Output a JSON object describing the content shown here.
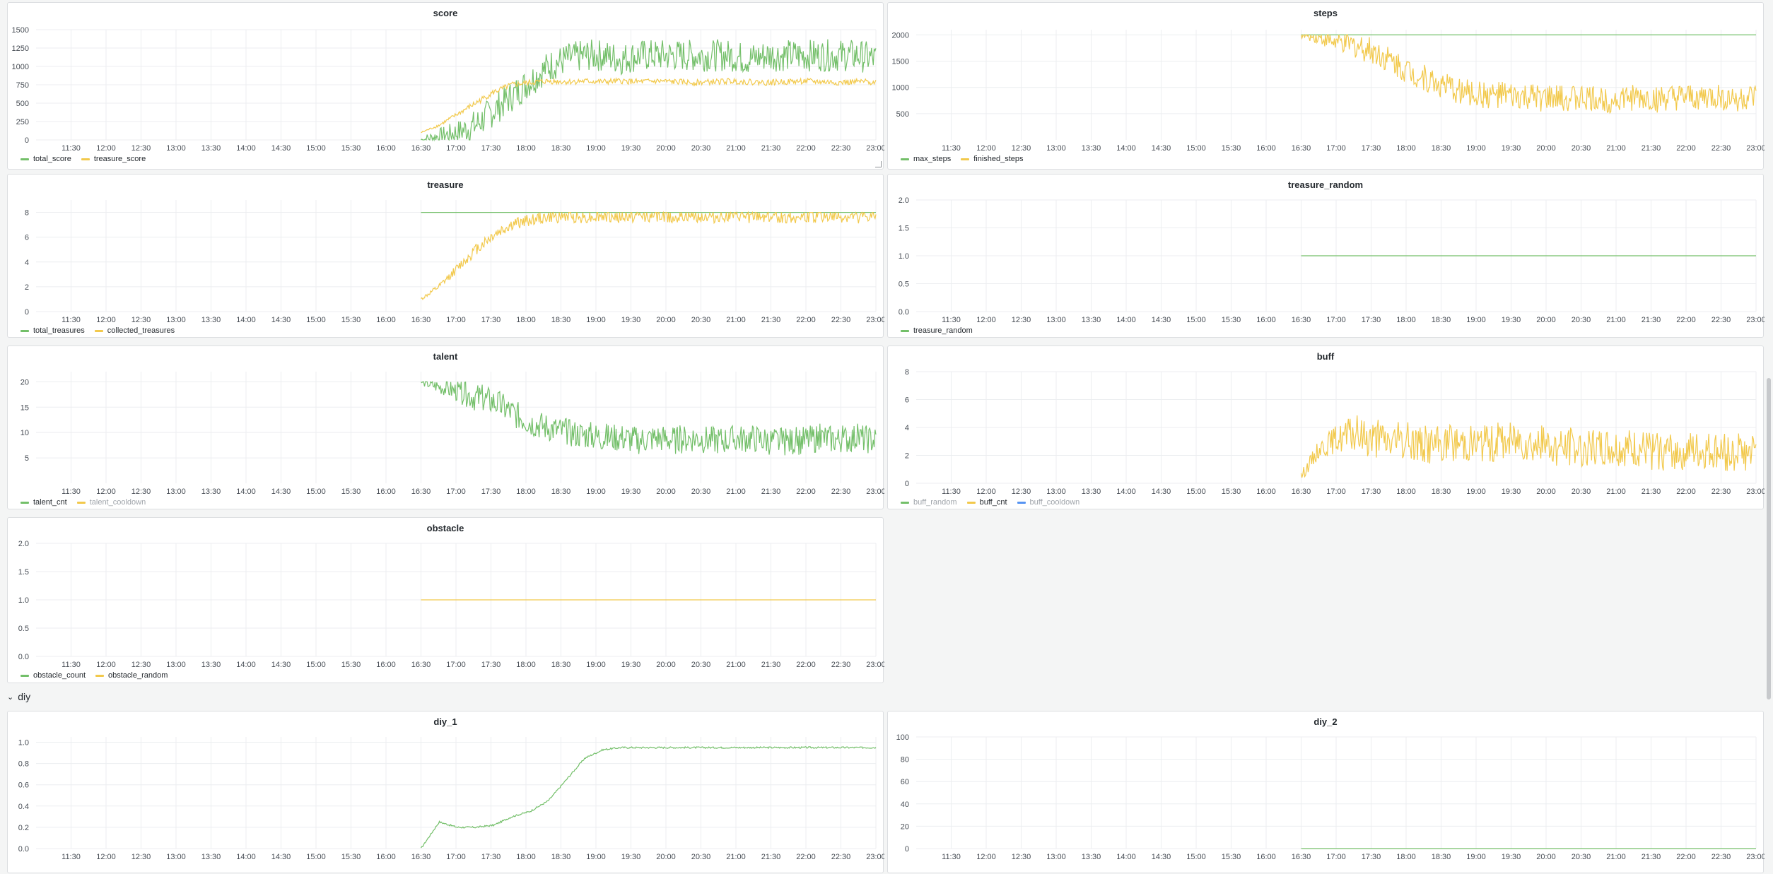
{
  "colors": {
    "green": "#73bf69",
    "yellow": "#f2c94c",
    "blue": "#5794f2"
  },
  "row_header": {
    "chevron": "chevron-down-icon",
    "label": "diy"
  },
  "time_ticks": [
    "11:30",
    "12:00",
    "12:30",
    "13:00",
    "13:30",
    "14:00",
    "14:30",
    "15:00",
    "15:30",
    "16:00",
    "16:30",
    "17:00",
    "17:30",
    "18:00",
    "18:30",
    "19:00",
    "19:30",
    "20:00",
    "20:30",
    "21:00",
    "21:30",
    "22:00",
    "22:30",
    "23:00"
  ],
  "panels": {
    "score": {
      "title": "score",
      "legend": [
        {
          "label": "total_score",
          "color": "#73bf69",
          "dim": false
        },
        {
          "label": "treasure_score",
          "color": "#f2c94c",
          "dim": false
        }
      ],
      "chart_data": {
        "type": "line",
        "x_range": [
          "11:00",
          "23:00"
        ],
        "ylim": [
          0,
          1500
        ],
        "yticks": [
          0,
          250,
          500,
          750,
          1000,
          1250,
          1500
        ],
        "series": [
          {
            "name": "total_score",
            "start": "16:30",
            "values": [
              0,
              50,
              100,
              200,
              400,
              600,
              800,
              1000,
              1100,
              1150,
              1150,
              1100,
              1150,
              1150,
              1150,
              1150,
              1150,
              1150,
              1100,
              1150,
              1150,
              1150,
              1150,
              1150,
              1150,
              1100
            ]
          },
          {
            "name": "treasure_score",
            "start": "16:30",
            "values": [
              100,
              200,
              350,
              500,
              650,
              750,
              780,
              800,
              790,
              800,
              790,
              800,
              790,
              800,
              790,
              780,
              790,
              800,
              790,
              780,
              790,
              800,
              790,
              780,
              790,
              790
            ]
          }
        ]
      }
    },
    "steps": {
      "title": "steps",
      "legend": [
        {
          "label": "max_steps",
          "color": "#73bf69",
          "dim": false
        },
        {
          "label": "finished_steps",
          "color": "#f2c94c",
          "dim": false
        }
      ],
      "chart_data": {
        "type": "line",
        "x_range": [
          "11:00",
          "23:00"
        ],
        "ylim": [
          0,
          2100
        ],
        "yticks": [
          500,
          1000,
          1500,
          2000
        ],
        "series": [
          {
            "name": "max_steps",
            "start": "16:30",
            "values": [
              2000,
              2000,
              2000,
              2000,
              2000,
              2000,
              2000,
              2000,
              2000,
              2000,
              2000,
              2000,
              2000,
              2000,
              2000,
              2000,
              2000,
              2000,
              2000,
              2000,
              2000,
              2000,
              2000,
              2000,
              2000,
              2000
            ]
          },
          {
            "name": "finished_steps",
            "start": "16:30",
            "values": [
              2000,
              1950,
              1850,
              1800,
              1700,
              1500,
              1300,
              1150,
              1000,
              900,
              850,
              850,
              800,
              800,
              780,
              800,
              780,
              770,
              800,
              780,
              760,
              780,
              800,
              800,
              780,
              790
            ]
          }
        ]
      }
    },
    "treasure": {
      "title": "treasure",
      "legend": [
        {
          "label": "total_treasures",
          "color": "#73bf69",
          "dim": false
        },
        {
          "label": "collected_treasures",
          "color": "#f2c94c",
          "dim": false
        }
      ],
      "chart_data": {
        "type": "line",
        "x_range": [
          "11:00",
          "23:00"
        ],
        "ylim": [
          0,
          9
        ],
        "yticks": [
          0,
          2,
          4,
          6,
          8
        ],
        "series": [
          {
            "name": "total_treasures",
            "start": "16:30",
            "values": [
              8,
              8,
              8,
              8,
              8,
              8,
              8,
              8,
              8,
              8,
              8,
              8,
              8,
              8,
              8,
              8,
              8,
              8,
              8,
              8,
              8,
              8,
              8,
              8,
              8,
              8
            ]
          },
          {
            "name": "collected_treasures",
            "start": "16:30",
            "values": [
              1,
              2,
              3.5,
              5,
              6.2,
              7,
              7.4,
              7.6,
              7.7,
              7.6,
              7.7,
              7.6,
              7.7,
              7.7,
              7.6,
              7.7,
              7.6,
              7.7,
              7.6,
              7.7,
              7.6,
              7.6,
              7.7,
              7.6,
              7.6,
              7.6
            ]
          }
        ]
      }
    },
    "treasure_random": {
      "title": "treasure_random",
      "legend": [
        {
          "label": "treasure_random",
          "color": "#73bf69",
          "dim": false
        }
      ],
      "chart_data": {
        "type": "line",
        "x_range": [
          "11:00",
          "23:00"
        ],
        "ylim": [
          0,
          2
        ],
        "yticks": [
          0,
          0.5,
          1,
          1.5,
          2
        ],
        "series": [
          {
            "name": "treasure_random",
            "start": "16:30",
            "values": [
              1,
              1,
              1,
              1,
              1,
              1,
              1,
              1,
              1,
              1,
              1,
              1,
              1,
              1,
              1,
              1,
              1,
              1,
              1,
              1,
              1,
              1,
              1,
              1,
              1,
              1
            ]
          }
        ]
      }
    },
    "talent": {
      "title": "talent",
      "legend": [
        {
          "label": "talent_cnt",
          "color": "#73bf69",
          "dim": false
        },
        {
          "label": "talent_cooldown",
          "color": "#f2c94c",
          "dim": true
        }
      ],
      "chart_data": {
        "type": "line",
        "x_range": [
          "11:00",
          "23:00"
        ],
        "ylim": [
          0,
          22
        ],
        "yticks": [
          5,
          10,
          15,
          20
        ],
        "series": [
          {
            "name": "talent_cnt",
            "start": "16:30",
            "values": [
              20,
              19,
              18,
              17,
              16,
              14,
              12,
              11,
              10,
              9.5,
              9,
              9,
              8.5,
              9,
              8.5,
              9,
              8.5,
              8.5,
              9,
              8.5,
              8,
              8.5,
              9,
              8.5,
              9,
              8.5
            ]
          }
        ]
      }
    },
    "buff": {
      "title": "buff",
      "legend": [
        {
          "label": "buff_random",
          "color": "#73bf69",
          "dim": true
        },
        {
          "label": "buff_cnt",
          "color": "#f2c94c",
          "dim": false
        },
        {
          "label": "buff_cooldown",
          "color": "#5794f2",
          "dim": true
        }
      ],
      "chart_data": {
        "type": "line",
        "x_range": [
          "11:00",
          "23:00"
        ],
        "ylim": [
          0,
          8
        ],
        "yticks": [
          0,
          2,
          4,
          6,
          8
        ],
        "series": [
          {
            "name": "buff_cnt",
            "start": "16:30",
            "values": [
              0.5,
              2.5,
              3.2,
              3.5,
              3.2,
              3,
              3,
              2.8,
              2.8,
              3,
              2.8,
              3,
              3.2,
              2.8,
              2.6,
              2.6,
              2.5,
              2.5,
              2.4,
              2.3,
              2.2,
              2.3,
              2.2,
              2.3,
              2.2,
              2.3
            ]
          }
        ]
      }
    },
    "obstacle": {
      "title": "obstacle",
      "legend": [
        {
          "label": "obstacle_count",
          "color": "#73bf69",
          "dim": false
        },
        {
          "label": "obstacle_random",
          "color": "#f2c94c",
          "dim": false
        }
      ],
      "chart_data": {
        "type": "line",
        "x_range": [
          "11:00",
          "23:00"
        ],
        "ylim": [
          0,
          2
        ],
        "yticks": [
          0,
          0.5,
          1,
          1.5,
          2
        ],
        "series": [
          {
            "name": "obstacle_random",
            "start": "16:30",
            "values": [
              1,
              1,
              1,
              1,
              1,
              1,
              1,
              1,
              1,
              1,
              1,
              1,
              1,
              1,
              1,
              1,
              1,
              1,
              1,
              1,
              1,
              1,
              1,
              1,
              1,
              1
            ]
          }
        ]
      }
    },
    "diy_1": {
      "title": "diy_1",
      "legend": [],
      "chart_data": {
        "type": "line",
        "x_range": [
          "11:00",
          "23:00"
        ],
        "ylim": [
          0,
          1.05
        ],
        "yticks": [
          0,
          0.2,
          0.4,
          0.6,
          0.8,
          1
        ],
        "series": [
          {
            "name": "diy_1",
            "start": "16:30",
            "values": [
              0,
              0.25,
              0.2,
              0.2,
              0.22,
              0.3,
              0.35,
              0.45,
              0.65,
              0.85,
              0.93,
              0.95,
              0.95,
              0.95,
              0.95,
              0.95,
              0.95,
              0.95,
              0.95,
              0.95,
              0.95,
              0.95,
              0.95,
              0.95,
              0.95,
              0.95
            ]
          }
        ]
      }
    },
    "diy_2": {
      "title": "diy_2",
      "legend": [],
      "chart_data": {
        "type": "line",
        "x_range": [
          "11:00",
          "23:00"
        ],
        "ylim": [
          0,
          100
        ],
        "yticks": [
          0,
          20,
          40,
          60,
          80,
          100
        ],
        "series": [
          {
            "name": "diy_2",
            "start": "16:30",
            "values": [
              0,
              0,
              0,
              0,
              0,
              0,
              0,
              0,
              0,
              0,
              0,
              0,
              0,
              0,
              0,
              0,
              0,
              0,
              0,
              0,
              0,
              0,
              0,
              0,
              0,
              0
            ]
          }
        ]
      }
    }
  }
}
